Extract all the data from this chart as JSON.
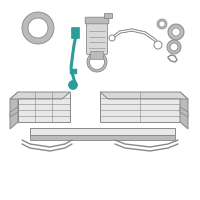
{
  "bg_color": "#ffffff",
  "line_color": "#888888",
  "line_dark": "#666666",
  "teal_color": "#2a9d9a",
  "teal_fill": "#3ab5b0",
  "gray_fill": "#d8d8d8",
  "gray_light": "#e8e8e8",
  "gray_medium": "#bbbbbb",
  "gray_dark": "#999999",
  "figsize": [
    2.0,
    2.0
  ],
  "dpi": 100
}
